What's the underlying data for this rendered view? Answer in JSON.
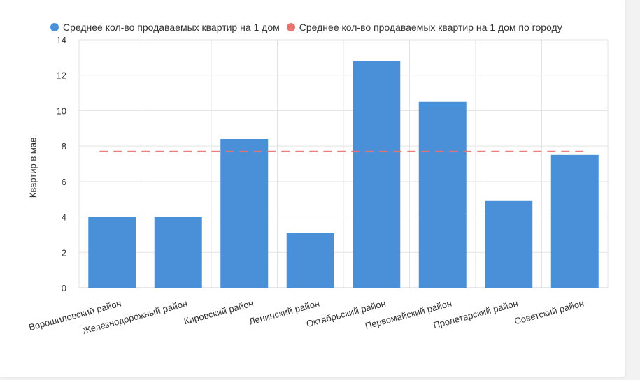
{
  "colors": {
    "bar": "#4a90d9",
    "avg_line": "#e8736e",
    "grid": "#e3e3e3"
  },
  "legend": {
    "series1": "Среднее кол-во продаваемых квартир на 1 дом",
    "series2": "Среднее кол-во продаваемых квартир на 1 дом по городу"
  },
  "chart_data": {
    "type": "bar",
    "title": "",
    "xlabel": "",
    "ylabel": "Квартир в мае",
    "ylim": [
      0,
      14
    ],
    "yticks": [
      0,
      2,
      4,
      6,
      8,
      10,
      12,
      14
    ],
    "grid": true,
    "legend_position": "top-left",
    "categories": [
      "Ворошиловский район",
      "Железнодорожный район",
      "Кировский район",
      "Ленинский район",
      "Октябрьский район",
      "Первомайский район",
      "Пролетарский район",
      "Советский район"
    ],
    "series": [
      {
        "name": "Среднее кол-во продаваемых квартир на 1 дом",
        "type": "bar",
        "values": [
          4.0,
          4.0,
          8.4,
          3.1,
          12.8,
          10.5,
          4.9,
          7.5
        ]
      },
      {
        "name": "Среднее кол-во продаваемых квартир на 1 дом по городу",
        "type": "line",
        "style": "dashed",
        "values": [
          7.7,
          7.7,
          7.7,
          7.7,
          7.7,
          7.7,
          7.7,
          7.7
        ]
      }
    ]
  }
}
